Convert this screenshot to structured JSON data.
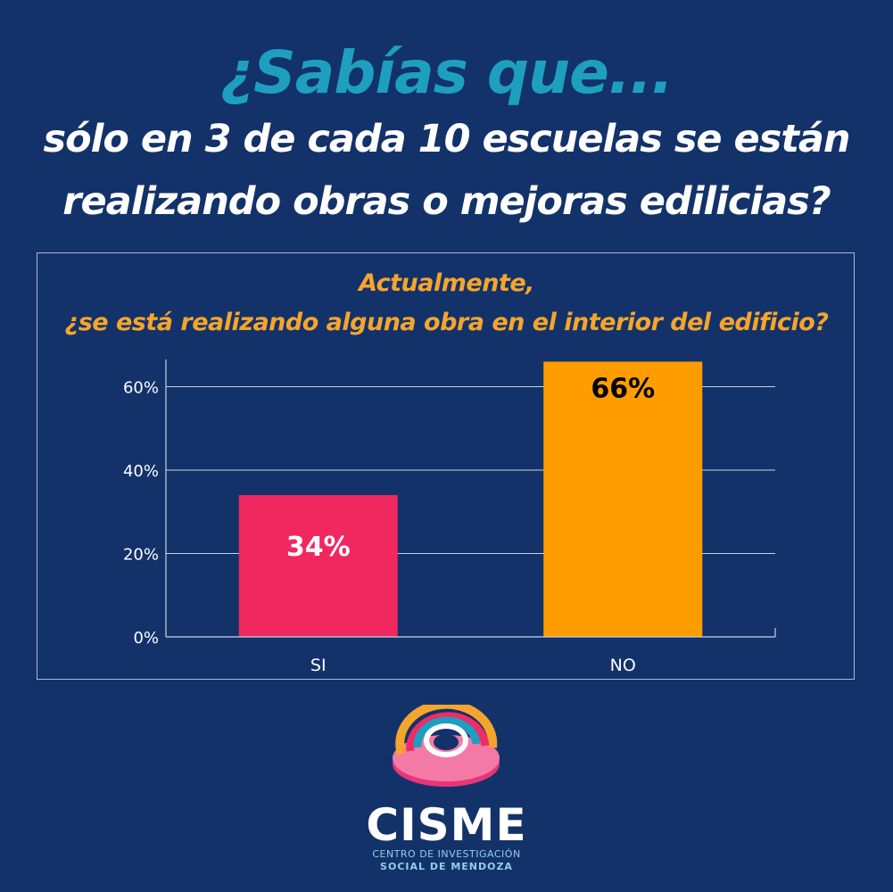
{
  "header": {
    "question_intro": "¿Sabías que...",
    "line_1": "sólo en 3 de cada 10 escuelas se están",
    "line_2": "realizando obras o mejoras edilicias?"
  },
  "chart_data": {
    "type": "bar",
    "title_line_1": "Actualmente,",
    "title_line_2": "¿se está realizando alguna obra en el interior del edificio?",
    "categories": [
      "SI",
      "NO"
    ],
    "values": [
      34,
      66
    ],
    "data_labels": [
      "34%",
      "66%"
    ],
    "bar_colors": [
      "#f0285f",
      "#ff9d00"
    ],
    "label_colors": [
      "#ffffff",
      "#000000"
    ],
    "y_ticks": [
      0,
      20,
      40,
      60
    ],
    "y_tick_labels": [
      "0%",
      "20%",
      "40%",
      "60%"
    ],
    "ylim": [
      0,
      66
    ],
    "grid": true,
    "xlabel": "",
    "ylabel": ""
  },
  "footer": {
    "brand_name": "CISME",
    "brand_tagline_1": "CENTRO DE INVESTIGACIÓN",
    "brand_tagline_2": "SOCIAL DE MENDOZA"
  },
  "colors": {
    "background": "#13326a",
    "accent_teal": "#1e9fbf",
    "accent_orange": "#f6a52c",
    "bar_si": "#f0285f",
    "bar_no": "#ff9d00"
  }
}
